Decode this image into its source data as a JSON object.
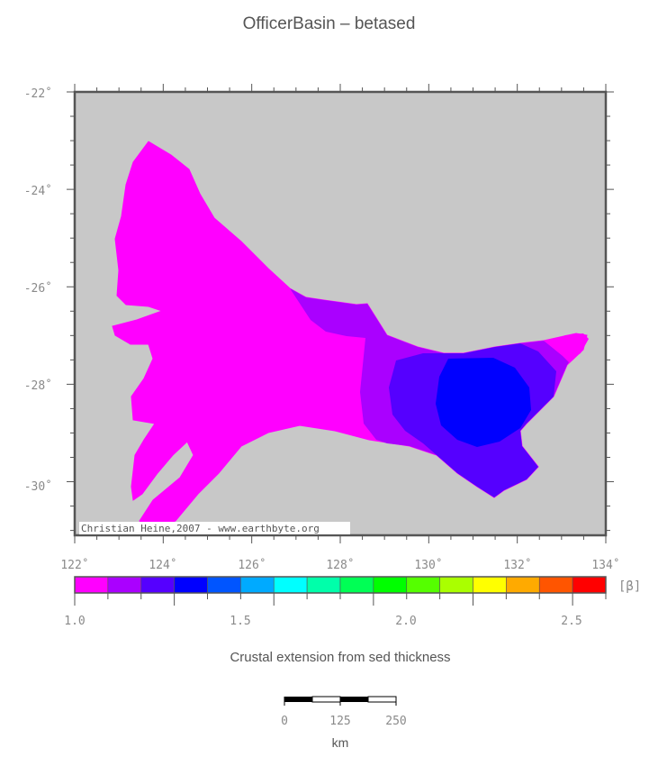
{
  "title": "OfficerBasin – betased",
  "map": {
    "background_color": "#c8c8c8",
    "lat_labels": [
      "-22˚",
      "-24˚",
      "-26˚",
      "-28˚",
      "-30˚"
    ],
    "lon_labels": [
      "122˚",
      "124˚",
      "126˚",
      "128˚",
      "130˚",
      "132˚",
      "134˚"
    ],
    "credit": "Christian Heine,2007 - www.earthbyte.org"
  },
  "colorbar": {
    "unit": "[β]",
    "colors": [
      "#ff00ff",
      "#aa00ff",
      "#5500ff",
      "#0000ff",
      "#0055ff",
      "#00aaff",
      "#00ffff",
      "#00ffaa",
      "#00ff55",
      "#00ff00",
      "#55ff00",
      "#aaff00",
      "#ffff00",
      "#ffaa00",
      "#ff5500",
      "#ff0000"
    ],
    "tick_labels": [
      "1.0",
      "1.5",
      "2.0",
      "2.5"
    ],
    "caption": "Crustal extension from sed thickness"
  },
  "scalebar": {
    "tick_labels": [
      "0",
      "125",
      "250"
    ],
    "unit": "km"
  }
}
